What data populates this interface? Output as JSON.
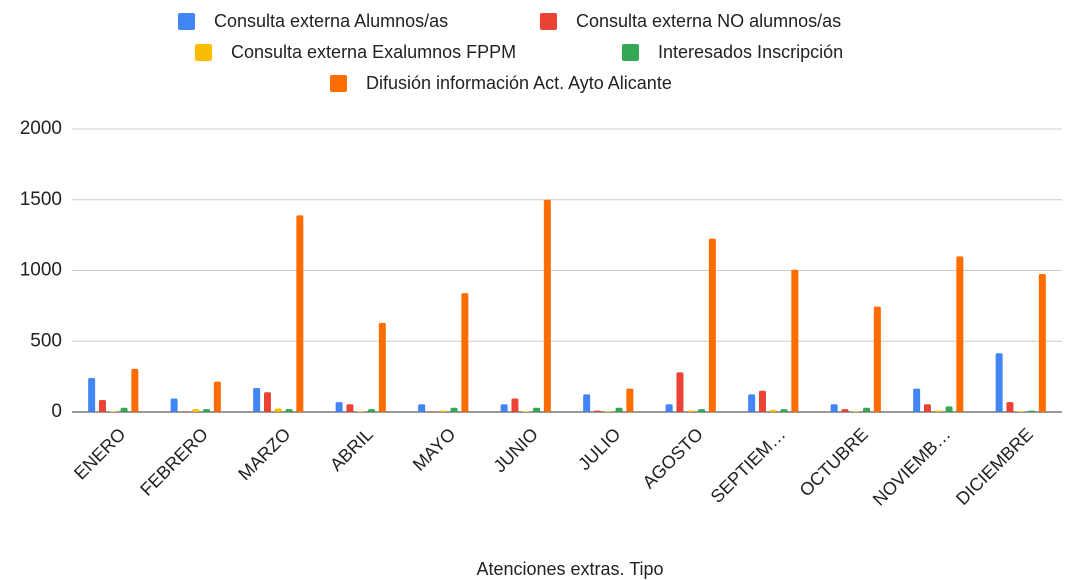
{
  "chart_data": {
    "type": "bar",
    "x_label": "Atenciones extras. Tipo",
    "categories": [
      "ENERO",
      "FEBRERO",
      "MARZO",
      "ABRIL",
      "MAYO",
      "JUNIO",
      "JULIO",
      "AGOSTO",
      "SEPTIEM…",
      "OCTUBRE",
      "NOVIEMB…",
      "DICIEMBRE"
    ],
    "series": [
      {
        "name": "Consulta externa Alumnos/as",
        "color": "#4285f4",
        "values": [
          240,
          95,
          170,
          70,
          55,
          55,
          125,
          55,
          125,
          55,
          165,
          415
        ]
      },
      {
        "name": "Consulta externa NO alumnos/as",
        "color": "#ea4335",
        "values": [
          85,
          5,
          140,
          55,
          5,
          95,
          10,
          280,
          150,
          20,
          55,
          70
        ]
      },
      {
        "name": "Consulta externa Exalumnos FPPM",
        "color": "#fbbc04",
        "values": [
          5,
          20,
          25,
          5,
          10,
          5,
          5,
          10,
          15,
          5,
          10,
          5
        ]
      },
      {
        "name": "Interesados Inscripción",
        "color": "#34a853",
        "values": [
          30,
          20,
          20,
          20,
          30,
          30,
          30,
          20,
          20,
          30,
          40,
          10
        ]
      },
      {
        "name": "Difusión información Act. Ayto Alicante",
        "color": "#ff6d01",
        "values": [
          305,
          215,
          1390,
          630,
          840,
          1500,
          165,
          1225,
          1005,
          745,
          1100,
          975
        ]
      }
    ],
    "ylim": [
      0,
      2000
    ],
    "yticks": [
      0,
      500,
      1000,
      1500,
      2000
    ],
    "grid": true
  }
}
